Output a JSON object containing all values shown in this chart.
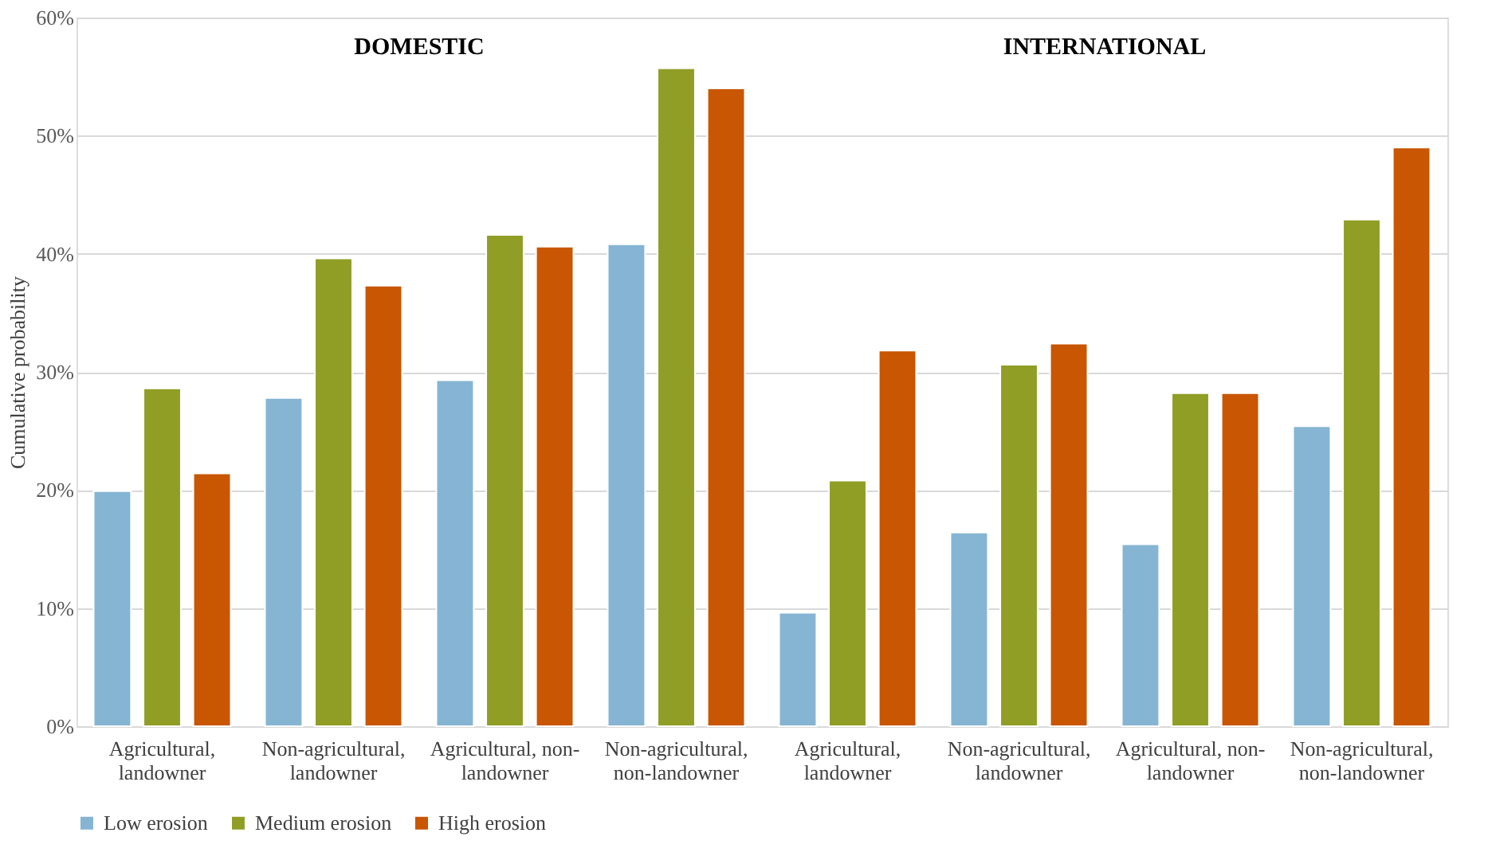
{
  "chart_data": {
    "type": "bar",
    "categories": [
      "Agricultural, landowner",
      "Non-agricultural, landowner",
      "Agricultural, non-landowner",
      "Non-agricultural, non-landowner",
      "Agricultural, landowner",
      "Non-agricultural, landowner",
      "Agricultural, non-landowner",
      "Non-agricultural, non-landowner"
    ],
    "series": [
      {
        "name": "Low erosion",
        "color": "#85b5d3",
        "values": [
          19.9,
          27.8,
          29.3,
          40.8,
          9.6,
          16.4,
          15.4,
          25.4
        ]
      },
      {
        "name": "Medium erosion",
        "color": "#909e26",
        "values": [
          28.6,
          39.6,
          41.6,
          55.7,
          20.8,
          30.6,
          28.2,
          42.9
        ]
      },
      {
        "name": "High erosion",
        "color": "#c85602",
        "values": [
          21.4,
          37.3,
          40.6,
          54.0,
          31.8,
          32.4,
          28.2,
          49.0
        ]
      }
    ],
    "ylabel": "Cumulative probability",
    "ylim": [
      0,
      60
    ],
    "yticks": [
      {
        "value": 0,
        "label": "0%"
      },
      {
        "value": 10,
        "label": "10%"
      },
      {
        "value": 20,
        "label": "20%"
      },
      {
        "value": 30,
        "label": "30%"
      },
      {
        "value": 40,
        "label": "40%"
      },
      {
        "value": 50,
        "label": "50%"
      },
      {
        "value": 60,
        "label": "60%"
      }
    ],
    "annotations": [
      "DOMESTIC",
      "INTERNATIONAL"
    ],
    "grid": "y",
    "legend": "bottom"
  }
}
